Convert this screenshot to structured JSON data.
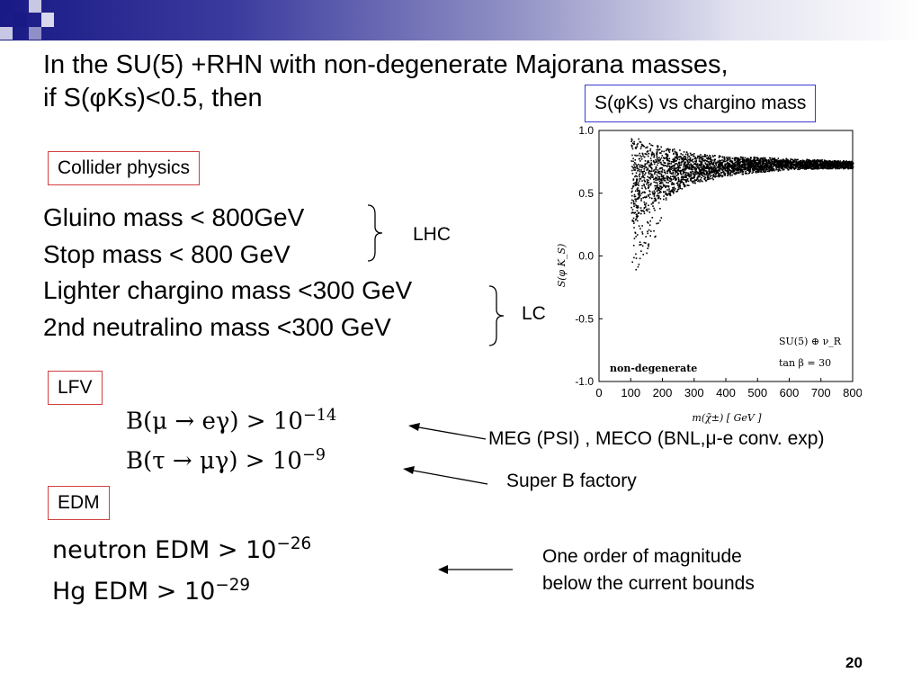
{
  "title": {
    "line1": "In the SU(5) +RHN with non-degenerate Majorana masses,",
    "line2": "if S(φKs)<0.5, then"
  },
  "boxes": {
    "collider": "Collider physics",
    "lfv": "LFV",
    "edm": "EDM",
    "plot_label": "S(φKs) vs chargino mass"
  },
  "mass_bounds": [
    "Gluino mass < 800GeV",
    "Stop mass < 800 GeV",
    "Lighter chargino mass <300 GeV",
    "2nd neutralino mass <300 GeV"
  ],
  "brackets": {
    "lhc": "LHC",
    "lc": "LC"
  },
  "lfv": {
    "eq1": {
      "lhs": "B(μ → eγ) > 10",
      "exp": "−14"
    },
    "eq2": {
      "lhs": "B(τ → μγ) > 10",
      "exp": "−9"
    },
    "note1": "MEG (PSI) , MECO (BNL,μ-e conv. exp)",
    "note2": "Super B factory"
  },
  "edm": {
    "eq1": {
      "lhs": "neutron EDM > 10",
      "exp": "−26"
    },
    "eq2": {
      "lhs": "Hg EDM > 10",
      "exp": "−29"
    },
    "note_line1": "One order of magnitude",
    "note_line2": "below the current bounds"
  },
  "page_number": "20",
  "colors": {
    "accent_dark": "#1a1a86",
    "box_red": "#d04040",
    "box_blue": "#3a3ad0"
  },
  "chart_data": {
    "type": "scatter",
    "title": "",
    "xlabel": "m(χ̃±) [ GeV ]",
    "ylabel": "S(φ K_S)",
    "xlim": [
      0,
      800
    ],
    "ylim": [
      -1.0,
      1.0
    ],
    "x_ticks": [
      "0",
      "100",
      "200",
      "300",
      "400",
      "500",
      "600",
      "700",
      "800"
    ],
    "y_ticks": [
      "1.0",
      "0.5",
      "0.0",
      "-0.5",
      "-1.0"
    ],
    "annotations": [
      "non-degenerate",
      "SU(5) ⊕ ν_R",
      "tan β = 30"
    ],
    "series": [
      {
        "x": [
          100,
          150,
          200,
          250,
          300,
          400,
          500,
          600,
          700,
          800
        ],
        "y_min": [
          0.2,
          0.35,
          0.45,
          0.52,
          0.58,
          0.64,
          0.67,
          0.69,
          0.7,
          0.7
        ],
        "y_max": [
          0.97,
          0.92,
          0.88,
          0.85,
          0.82,
          0.8,
          0.79,
          0.78,
          0.77,
          0.76
        ],
        "sparse_min": [
          -0.2,
          0.2,
          0.3,
          0.45
        ]
      }
    ]
  }
}
